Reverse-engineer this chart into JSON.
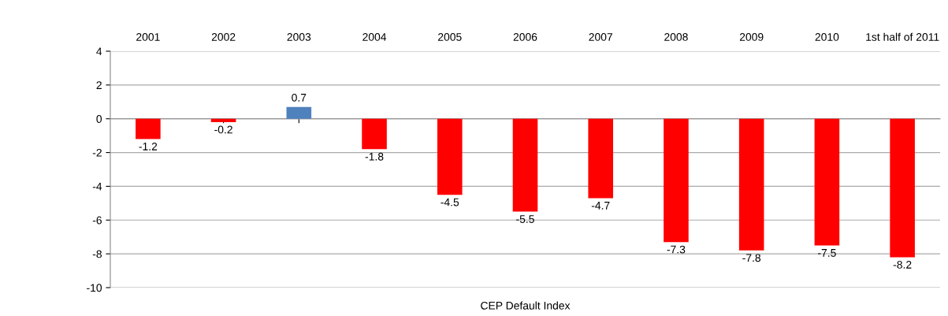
{
  "chart_data": {
    "type": "bar",
    "categories": [
      "2001",
      "2002",
      "2003",
      "2004",
      "2005",
      "2006",
      "2007",
      "2008",
      "2009",
      "2010",
      "1st half of 2011"
    ],
    "values": [
      -1.2,
      -0.2,
      0.7,
      -1.8,
      -4.5,
      -5.5,
      -4.7,
      -7.3,
      -7.8,
      -7.5,
      -8.2
    ],
    "colors": [
      "#ff0000",
      "#ff0000",
      "#4f81bd",
      "#ff0000",
      "#ff0000",
      "#ff0000",
      "#ff0000",
      "#ff0000",
      "#ff0000",
      "#ff0000",
      "#ff0000"
    ],
    "xlabel": "CEP Default Index",
    "ylim": [
      -10,
      4
    ],
    "yticks": [
      -10,
      -8,
      -6,
      -4,
      -2,
      0,
      2,
      4
    ],
    "grid": "y",
    "data_labels": true
  }
}
